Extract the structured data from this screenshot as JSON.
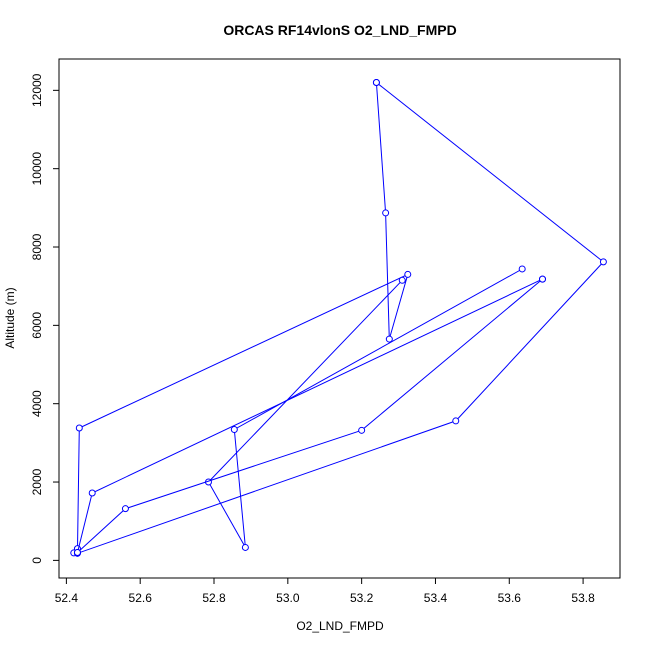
{
  "chart_data": {
    "type": "line",
    "title": "ORCAS RF14vlonS O2_LND_FMPD",
    "xlabel": "O2_LND_FMPD",
    "ylabel": "Altitude (m)",
    "xlim": [
      52.38,
      53.9
    ],
    "ylim": [
      -450,
      12800
    ],
    "xticks": [
      52.4,
      52.6,
      52.8,
      53.0,
      53.2,
      53.4,
      53.6,
      53.8
    ],
    "xtick_labels": [
      "52.4",
      "52.6",
      "52.8",
      "53.0",
      "53.2",
      "53.4",
      "53.6",
      "53.8"
    ],
    "yticks": [
      0,
      2000,
      4000,
      6000,
      8000,
      10000,
      12000
    ],
    "ytick_labels": [
      "0",
      "2000",
      "4000",
      "6000",
      "8000",
      "10000",
      "12000"
    ],
    "grid": false,
    "series": [
      {
        "color": "#0000ff",
        "marker": "open-circle",
        "points": [
          {
            "x": 53.24,
            "y": 12200
          },
          {
            "x": 53.265,
            "y": 8870
          },
          {
            "x": 53.275,
            "y": 5650
          },
          {
            "x": 53.325,
            "y": 7300
          },
          {
            "x": 52.435,
            "y": 3380
          },
          {
            "x": 52.43,
            "y": 300
          },
          {
            "x": 52.42,
            "y": 190
          },
          {
            "x": 52.43,
            "y": 180
          },
          {
            "x": 53.455,
            "y": 3560
          },
          {
            "x": 53.855,
            "y": 7620
          },
          {
            "x": 53.24,
            "y": 12200
          }
        ]
      },
      {
        "color": "#0000ff",
        "marker": "open-circle",
        "points": [
          {
            "x": 53.31,
            "y": 7150
          },
          {
            "x": 52.785,
            "y": 2000
          },
          {
            "x": 52.885,
            "y": 330
          },
          {
            "x": 52.855,
            "y": 3340
          },
          {
            "x": 53.635,
            "y": 7440
          }
        ]
      },
      {
        "color": "#0000ff",
        "marker": "open-circle",
        "points": [
          {
            "x": 53.69,
            "y": 7180
          },
          {
            "x": 52.47,
            "y": 1720
          },
          {
            "x": 52.43,
            "y": 200
          }
        ]
      },
      {
        "color": "#0000ff",
        "marker": "open-circle",
        "points": [
          {
            "x": 53.69,
            "y": 7180
          },
          {
            "x": 53.2,
            "y": 3320
          },
          {
            "x": 52.56,
            "y": 1320
          },
          {
            "x": 52.43,
            "y": 200
          }
        ]
      }
    ]
  }
}
